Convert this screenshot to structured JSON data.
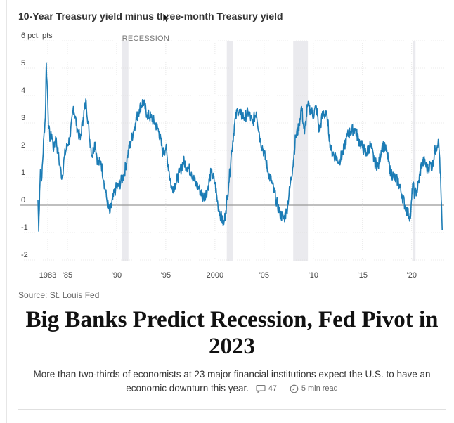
{
  "chart_title": "10-Year Treasury yield minus three-month Treasury yield",
  "source": "Source: St. Louis Fed",
  "headline": "Big Banks Predict Recession, Fed Pivot in 2023",
  "summary": "More than two-thirds of economists at 23 major financial institutions expect the U.S. to have an economic downturn this year.",
  "comments_count": "47",
  "read_time": "5 min read",
  "icons": {
    "comment": "comment-icon",
    "clock": "clock-icon",
    "cursor": "cursor-icon"
  },
  "colors": {
    "line": "#1c7cb5",
    "recession": "#eaeaee",
    "zero_line": "#999999",
    "grid": "#d8d8d8"
  },
  "chart_data": {
    "type": "line",
    "title": "10-Year Treasury yield minus three-month Treasury yield",
    "ylabel": "6 pct. pts",
    "ylim": [
      -2,
      6
    ],
    "xlim": [
      1982,
      2023.3
    ],
    "yticks": [
      6,
      5,
      4,
      3,
      2,
      1,
      0,
      -1,
      -2
    ],
    "yticklabels": [
      "6 pct. pts",
      "5",
      "4",
      "3",
      "2",
      "1",
      "0",
      "-1",
      "-2"
    ],
    "xticks": [
      1983,
      1985,
      1990,
      1995,
      2000,
      2005,
      2010,
      2015,
      2020
    ],
    "xticklabels": [
      "1983",
      "'85",
      "'90",
      "'95",
      "2000",
      "'05",
      "'10",
      "'15",
      "'20"
    ],
    "grid": true,
    "recession_label": "RECESSION",
    "recessions": [
      [
        1990.55,
        1991.2
      ],
      [
        2001.2,
        2001.85
      ],
      [
        2007.95,
        2009.45
      ],
      [
        2020.1,
        2020.35
      ]
    ],
    "series": [
      {
        "x": [
          1982.0,
          1982.08,
          1982.17,
          1982.25,
          1982.4,
          1982.6,
          1982.75,
          1982.85,
          1983.0,
          1983.1,
          1983.25,
          1983.4,
          1983.6,
          1983.8,
          1984.0,
          1984.2,
          1984.45,
          1984.7,
          1985.0,
          1985.3,
          1985.6,
          1986.0,
          1986.3,
          1986.6,
          1986.9,
          1987.2,
          1987.5,
          1987.8,
          1988.1,
          1988.4,
          1988.7,
          1989.0,
          1989.3,
          1989.6,
          1989.9,
          1990.2,
          1990.5,
          1990.8,
          1991.1,
          1991.5,
          1991.9,
          1992.3,
          1992.7,
          1993.1,
          1993.5,
          1993.9,
          1994.3,
          1994.7,
          1995.0,
          1995.3,
          1995.6,
          1996.0,
          1996.4,
          1996.8,
          1997.2,
          1997.6,
          1998.0,
          1998.4,
          1998.8,
          1999.2,
          1999.6,
          2000.0,
          2000.3,
          2000.6,
          2000.9,
          2001.1,
          2001.4,
          2001.7,
          2002.0,
          2002.3,
          2002.6,
          2003.0,
          2003.4,
          2003.8,
          2004.2,
          2004.6,
          2005.0,
          2005.4,
          2005.8,
          2006.2,
          2006.6,
          2007.0,
          2007.3,
          2007.6,
          2007.9,
          2008.2,
          2008.5,
          2008.8,
          2009.1,
          2009.4,
          2009.7,
          2010.0,
          2010.3,
          2010.6,
          2011.0,
          2011.4,
          2011.8,
          2012.2,
          2012.6,
          2013.0,
          2013.4,
          2013.8,
          2014.2,
          2014.6,
          2015.0,
          2015.4,
          2015.8,
          2016.2,
          2016.6,
          2017.0,
          2017.4,
          2017.8,
          2018.2,
          2018.6,
          2019.0,
          2019.3,
          2019.6,
          2019.9,
          2020.1,
          2020.3,
          2020.6,
          2021.0,
          2021.3,
          2021.6,
          2021.9,
          2022.1,
          2022.3,
          2022.5,
          2022.7,
          2022.85,
          2023.0,
          2023.1
        ],
        "y": [
          0.2,
          -0.95,
          0.5,
          1.3,
          1.0,
          2.5,
          3.2,
          5.2,
          3.8,
          2.8,
          2.4,
          2.6,
          2.0,
          2.5,
          2.0,
          1.5,
          1.0,
          1.8,
          2.2,
          2.5,
          3.6,
          2.8,
          2.4,
          3.2,
          3.8,
          2.6,
          1.8,
          2.3,
          1.5,
          1.6,
          0.9,
          0.2,
          -0.3,
          0.2,
          0.6,
          0.7,
          0.9,
          1.2,
          1.8,
          2.4,
          3.0,
          3.5,
          3.8,
          3.3,
          3.2,
          3.0,
          2.7,
          1.9,
          2.1,
          1.3,
          0.6,
          0.8,
          1.2,
          1.6,
          1.4,
          1.2,
          0.8,
          0.6,
          0.3,
          0.5,
          1.2,
          0.8,
          0.0,
          -0.4,
          -0.7,
          -0.2,
          0.8,
          2.0,
          3.0,
          3.5,
          3.3,
          3.2,
          3.4,
          3.0,
          3.4,
          2.4,
          1.9,
          1.2,
          0.8,
          0.2,
          -0.3,
          -0.5,
          -0.2,
          0.6,
          1.4,
          2.5,
          2.8,
          3.6,
          2.6,
          3.6,
          3.5,
          3.3,
          3.6,
          2.7,
          3.4,
          3.2,
          2.0,
          1.8,
          1.6,
          1.9,
          2.5,
          2.7,
          2.8,
          2.4,
          2.1,
          1.9,
          2.2,
          1.6,
          1.4,
          2.2,
          2.0,
          1.3,
          1.0,
          0.9,
          0.4,
          0.0,
          -0.3,
          -0.4,
          0.8,
          0.4,
          0.6,
          1.5,
          1.6,
          1.3,
          1.5,
          1.4,
          1.9,
          2.1,
          2.4,
          1.7,
          0.2,
          -0.9
        ]
      }
    ]
  }
}
